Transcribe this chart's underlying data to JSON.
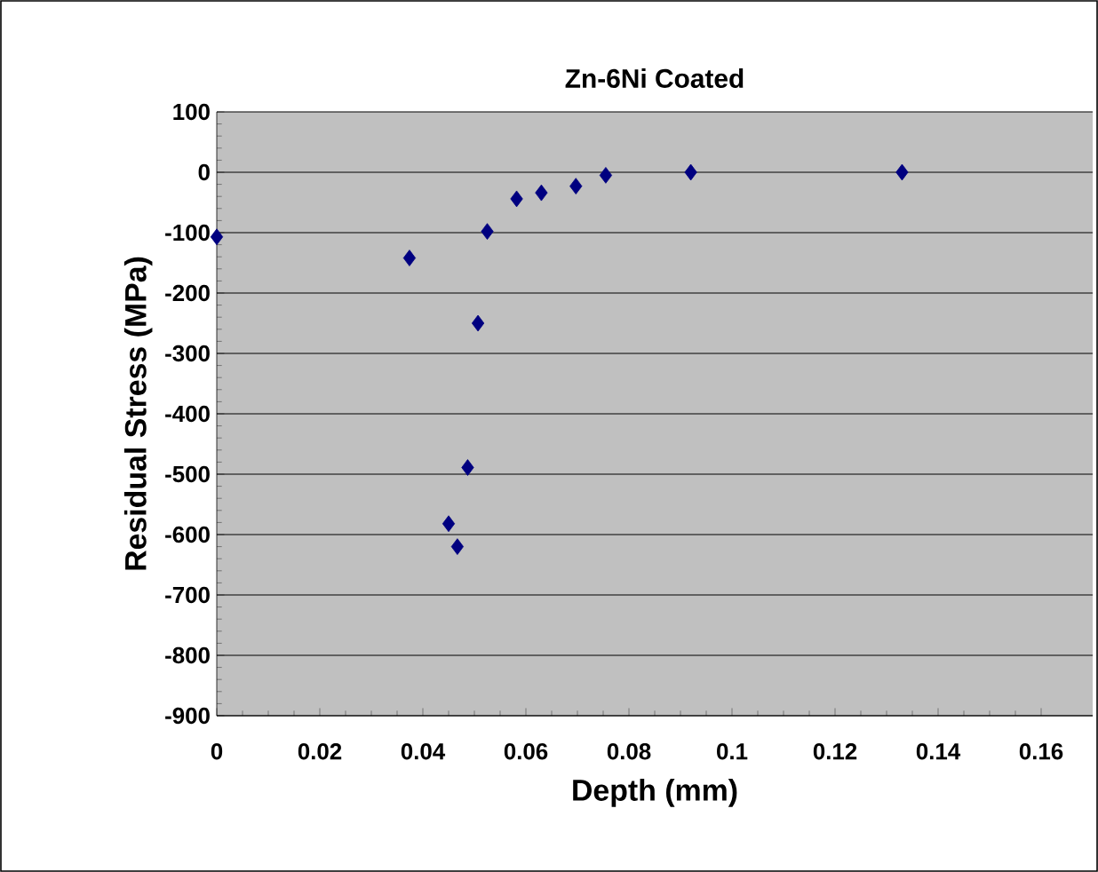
{
  "chart_data": {
    "type": "scatter",
    "title": "Zn-6Ni Coated",
    "xlabel": "Depth (mm)",
    "ylabel": "Residual Stress (MPa)",
    "x": [
      0,
      0.0374,
      0.0525,
      0.0582,
      0.063,
      0.0697,
      0.0755,
      0.092,
      0.133,
      0.0507,
      0.0487,
      0.045,
      0.0467
    ],
    "series": [
      {
        "color": "#000080",
        "values": [
          -107,
          -142,
          -98,
          -44,
          -34,
          -23,
          -5,
          0,
          0,
          -250,
          -489,
          -582,
          -620
        ]
      }
    ],
    "marker": "diamond",
    "grid": "y",
    "xlim": [
      0,
      0.17
    ],
    "ylim": [
      -900,
      100
    ],
    "xticks": [
      0,
      0.02,
      0.04,
      0.06,
      0.08,
      0.1,
      0.12,
      0.14,
      0.16
    ],
    "yticks": [
      -900,
      -800,
      -700,
      -600,
      -500,
      -400,
      -300,
      -200,
      -100,
      0,
      100
    ]
  }
}
